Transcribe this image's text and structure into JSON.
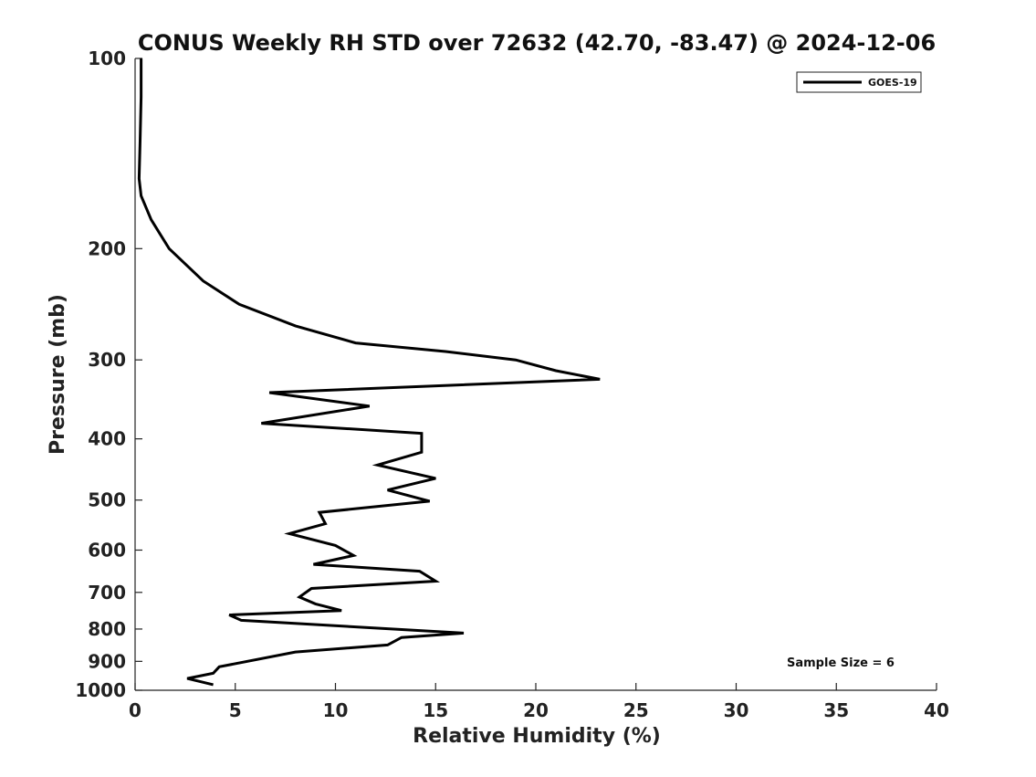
{
  "chart_data": {
    "type": "line",
    "title": "CONUS Weekly RH STD over 72632 (42.70, -83.47) @ 2024-12-06",
    "xlabel": "Relative Humidity (%)",
    "ylabel": "Pressure (mb)",
    "xlim": [
      0,
      40
    ],
    "ylim": [
      100,
      1000
    ],
    "yscale": "log",
    "y_reversed": true,
    "xticks": [
      0,
      5,
      10,
      15,
      20,
      25,
      30,
      35,
      40
    ],
    "yticks": [
      100,
      200,
      300,
      400,
      500,
      600,
      700,
      800,
      900,
      1000
    ],
    "grid": false,
    "legend_position": "top-right",
    "annotation": "Sample Size = 6",
    "series": [
      {
        "name": "GOES-19",
        "color": "#000000",
        "points": [
          [
            0.3,
            100
          ],
          [
            0.3,
            115
          ],
          [
            0.25,
            135
          ],
          [
            0.2,
            155
          ],
          [
            0.3,
            165
          ],
          [
            0.8,
            180
          ],
          [
            1.7,
            200
          ],
          [
            3.4,
            225
          ],
          [
            5.2,
            245
          ],
          [
            8.0,
            265
          ],
          [
            11.0,
            282
          ],
          [
            15.5,
            291
          ],
          [
            19.0,
            300
          ],
          [
            21.0,
            312
          ],
          [
            23.2,
            322
          ],
          [
            6.7,
            338
          ],
          [
            11.7,
            355
          ],
          [
            6.3,
            378
          ],
          [
            14.3,
            392
          ],
          [
            14.3,
            420
          ],
          [
            12.1,
            440
          ],
          [
            15.0,
            462
          ],
          [
            12.6,
            482
          ],
          [
            14.7,
            502
          ],
          [
            9.2,
            523
          ],
          [
            9.5,
            545
          ],
          [
            7.7,
            565
          ],
          [
            10.0,
            590
          ],
          [
            10.9,
            612
          ],
          [
            8.9,
            632
          ],
          [
            14.2,
            648
          ],
          [
            15.0,
            672
          ],
          [
            8.8,
            690
          ],
          [
            8.2,
            712
          ],
          [
            9.0,
            730
          ],
          [
            10.3,
            748
          ],
          [
            4.7,
            760
          ],
          [
            5.3,
            775
          ],
          [
            16.4,
            812
          ],
          [
            13.3,
            825
          ],
          [
            12.6,
            848
          ],
          [
            8.0,
            870
          ],
          [
            4.2,
            918
          ],
          [
            3.9,
            940
          ],
          [
            2.6,
            958
          ],
          [
            3.9,
            980
          ]
        ]
      }
    ]
  }
}
